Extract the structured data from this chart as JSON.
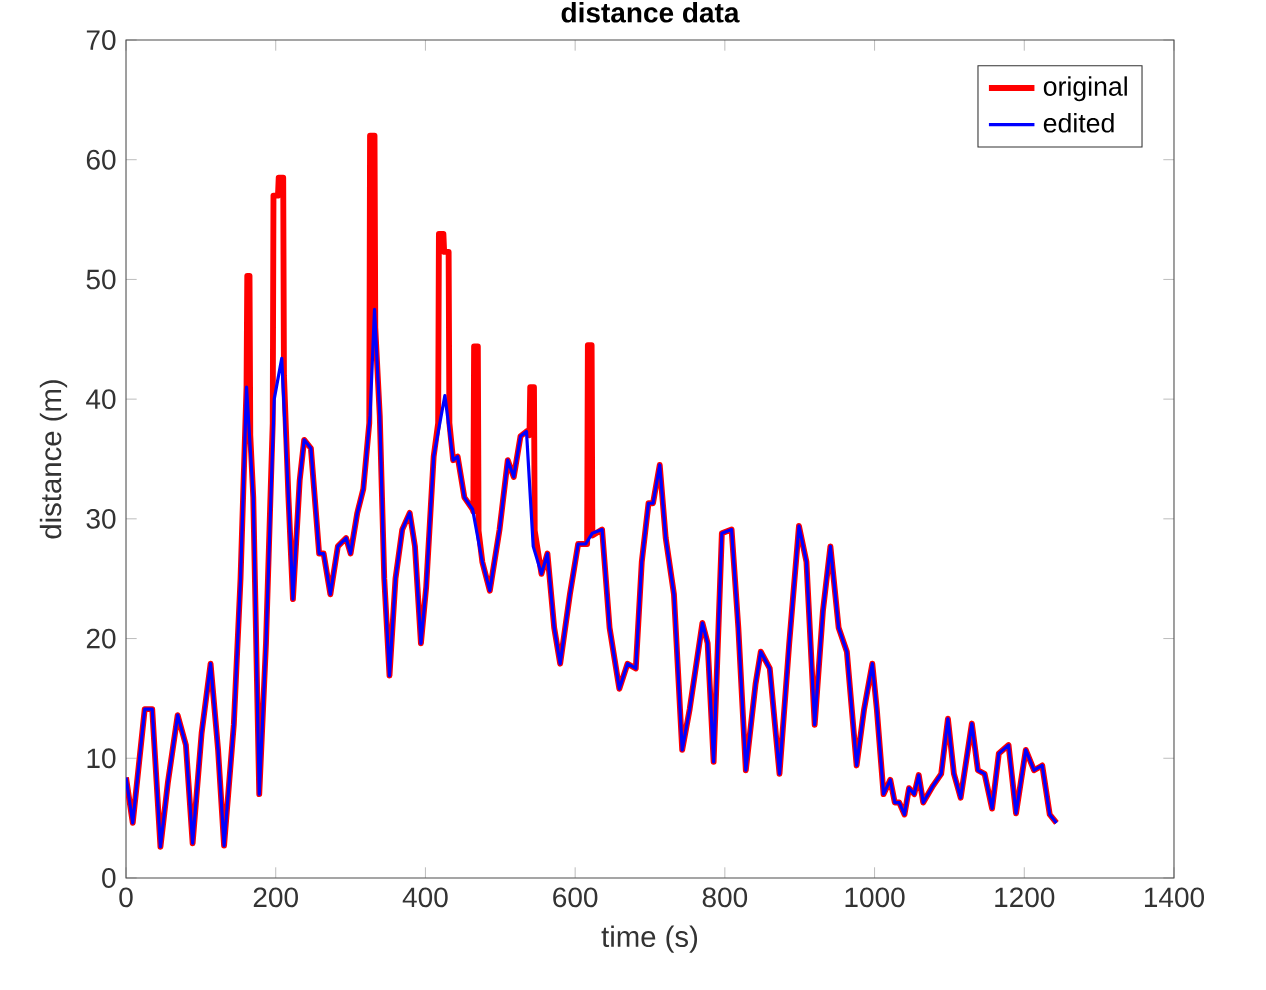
{
  "chart_data": {
    "type": "line",
    "title": "distance data",
    "xlabel": "time (s)",
    "ylabel": "distance (m)",
    "xlim": [
      0,
      1400
    ],
    "ylim": [
      0,
      70
    ],
    "xticks": [
      0,
      200,
      400,
      600,
      800,
      1000,
      1200,
      1400
    ],
    "yticks": [
      0,
      10,
      20,
      30,
      40,
      50,
      60,
      70
    ],
    "legend": "top right",
    "series": [
      {
        "name": "original",
        "color": "#ff0000",
        "x": [
          0,
          9,
          25,
          35,
          46,
          56,
          69,
          80,
          89,
          101,
          113,
          123,
          131,
          144,
          153,
          161,
          162,
          165,
          166,
          170,
          178,
          187,
          196,
          197,
          203,
          204,
          210,
          211,
          217,
          223,
          232,
          238,
          247,
          258,
          264,
          273,
          283,
          294,
          300,
          309,
          317,
          325,
          326,
          332,
          333,
          339,
          345,
          352,
          360,
          369,
          379,
          386,
          394,
          401,
          411,
          417,
          418,
          424,
          425,
          431,
          432,
          437,
          443,
          452,
          463,
          464,
          465,
          470,
          471,
          476,
          486,
          499,
          510,
          518,
          527,
          535,
          539,
          540,
          545,
          546,
          555,
          563,
          572,
          580,
          593,
          604,
          614,
          616,
          617,
          622,
          623,
          636,
          646,
          659,
          670,
          681,
          689,
          698,
          704,
          713,
          721,
          732,
          743,
          753,
          770,
          777,
          785,
          796,
          809,
          818,
          828,
          841,
          848,
          860,
          873,
          886,
          899,
          909,
          920,
          931,
          941,
          952,
          963,
          976,
          986,
          997,
          1003,
          1012,
          1021,
          1027,
          1033,
          1040,
          1046,
          1053,
          1059,
          1065,
          1078,
          1089,
          1098,
          1106,
          1115,
          1130,
          1138,
          1147,
          1157,
          1166,
          1179,
          1189,
          1202,
          1213,
          1224,
          1234,
          1243
        ],
        "values": [
          8.4,
          4.6,
          14.1,
          14.1,
          2.6,
          8.0,
          13.6,
          11.1,
          2.9,
          12.1,
          17.9,
          10.7,
          2.7,
          12.8,
          25,
          41,
          50.3,
          50.3,
          37,
          31.8,
          7.0,
          19.6,
          38,
          57,
          57,
          58.5,
          58.5,
          42,
          31.8,
          23.3,
          33.2,
          36.6,
          35.9,
          27.1,
          27.1,
          23.7,
          27.7,
          28.4,
          27.1,
          30.5,
          32.5,
          38,
          62,
          62,
          46,
          38.6,
          25,
          16.9,
          25,
          29.1,
          30.5,
          27.7,
          19.6,
          24.3,
          35.2,
          38,
          53.8,
          53.8,
          52.3,
          52.3,
          38,
          34.9,
          35.2,
          31.8,
          30.8,
          30.6,
          44.4,
          44.4,
          29,
          26.4,
          24,
          29.1,
          34.9,
          33.5,
          36.9,
          37.3,
          37,
          41,
          41,
          29,
          25.4,
          27.1,
          20.9,
          17.9,
          23.7,
          27.9,
          27.9,
          27.9,
          44.5,
          44.5,
          28.6,
          29.1,
          20.9,
          15.8,
          17.9,
          17.5,
          26.4,
          31.3,
          31.3,
          34.5,
          28.4,
          23.7,
          10.7,
          14.1,
          21.3,
          19.6,
          9.7,
          28.8,
          29.1,
          20.9,
          9.0,
          16.2,
          18.9,
          17.5,
          8.7,
          19.6,
          29.4,
          26.4,
          12.8,
          22.3,
          27.7,
          20.9,
          18.9,
          9.4,
          14.1,
          17.9,
          14.1,
          7.0,
          8.2,
          6.3,
          6.3,
          5.3,
          7.5,
          7.0,
          8.6,
          6.3,
          7.7,
          8.7,
          13.3,
          8.7,
          6.7,
          12.9,
          9.0,
          8.7,
          5.8,
          10.4,
          11.1,
          5.4,
          10.7,
          9.0,
          9.4,
          5.3,
          4.6
        ]
      },
      {
        "name": "edited",
        "color": "#0000ff",
        "x": [
          0,
          9,
          25,
          35,
          46,
          56,
          69,
          80,
          89,
          101,
          113,
          123,
          131,
          144,
          153,
          161,
          170,
          178,
          187,
          198,
          208,
          217,
          223,
          232,
          238,
          247,
          258,
          264,
          273,
          283,
          294,
          300,
          309,
          317,
          326,
          332,
          339,
          345,
          352,
          360,
          369,
          379,
          386,
          394,
          401,
          411,
          426,
          437,
          443,
          452,
          463,
          476,
          486,
          499,
          510,
          518,
          527,
          535,
          544,
          555,
          563,
          572,
          580,
          593,
          604,
          614,
          623,
          636,
          646,
          659,
          670,
          681,
          689,
          698,
          704,
          713,
          721,
          732,
          743,
          753,
          770,
          777,
          785,
          796,
          809,
          818,
          828,
          841,
          848,
          860,
          873,
          886,
          899,
          909,
          920,
          931,
          941,
          952,
          963,
          976,
          986,
          997,
          1003,
          1012,
          1021,
          1027,
          1033,
          1040,
          1046,
          1053,
          1059,
          1065,
          1078,
          1089,
          1098,
          1106,
          1115,
          1130,
          1138,
          1147,
          1157,
          1166,
          1179,
          1189,
          1202,
          1213,
          1224,
          1234,
          1243
        ],
        "values": [
          8.4,
          4.6,
          14.1,
          14.1,
          2.6,
          8.0,
          13.6,
          11.1,
          2.9,
          12.1,
          17.9,
          10.7,
          2.7,
          12.8,
          25,
          41,
          31.8,
          7.0,
          19.6,
          40,
          43.4,
          31.8,
          23.3,
          33.2,
          36.6,
          35.9,
          27.1,
          27.1,
          23.7,
          27.7,
          28.4,
          27.1,
          30.5,
          32.5,
          38.6,
          47.5,
          38.6,
          25,
          16.9,
          25,
          29.1,
          30.5,
          27.7,
          19.6,
          24.3,
          35.2,
          40.3,
          34.9,
          35.2,
          31.8,
          30.8,
          26.4,
          24,
          29.1,
          34.9,
          33.5,
          36.9,
          37.3,
          27.7,
          25.4,
          27.1,
          20.9,
          17.9,
          23.7,
          27.9,
          27.9,
          28.8,
          29.1,
          20.9,
          15.8,
          17.9,
          17.5,
          26.4,
          31.3,
          31.3,
          34.5,
          28.4,
          23.7,
          10.7,
          14.1,
          21.3,
          19.6,
          9.7,
          28.8,
          29.1,
          20.9,
          9.0,
          16.2,
          18.9,
          17.5,
          8.7,
          19.6,
          29.4,
          26.4,
          12.8,
          22.3,
          27.7,
          20.9,
          18.9,
          9.4,
          14.1,
          17.9,
          14.1,
          7.0,
          8.2,
          6.3,
          6.3,
          5.3,
          7.5,
          7.0,
          8.6,
          6.3,
          7.7,
          8.7,
          13.3,
          8.7,
          6.7,
          12.9,
          9.0,
          8.7,
          5.8,
          10.4,
          11.1,
          5.4,
          10.7,
          9.0,
          9.4,
          5.3,
          4.6
        ]
      }
    ]
  }
}
